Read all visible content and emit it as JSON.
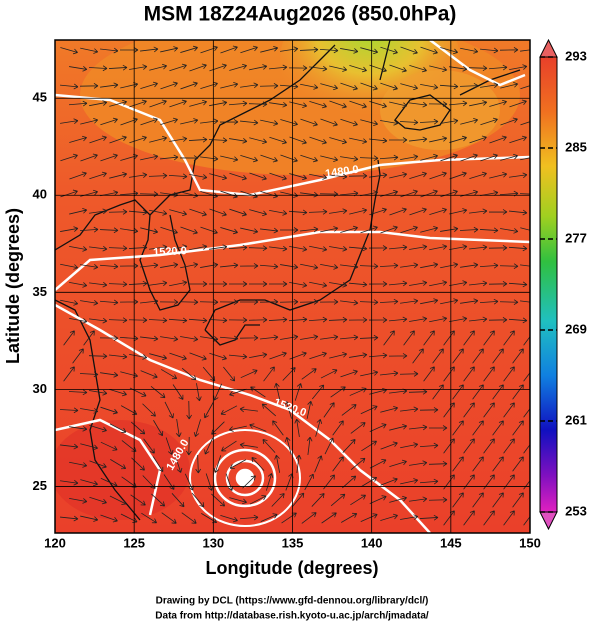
{
  "title": "MSM 18Z24Aug2026 (850.0hPa)",
  "x_axis": {
    "label": "Longitude (degrees)",
    "lim": [
      120,
      150
    ],
    "ticks": [
      120,
      125,
      130,
      135,
      140,
      145,
      150
    ]
  },
  "y_axis": {
    "label": "Latitude  (degrees)",
    "lim": [
      22.6,
      48
    ],
    "ticks": [
      25,
      30,
      35,
      40,
      45
    ]
  },
  "colorbar": {
    "lim": [
      253,
      293
    ],
    "ticks": [
      293,
      285,
      277,
      269,
      261,
      253
    ]
  },
  "contour_labels": [
    "1480.0",
    "1520.0",
    "1520.0",
    "1480.0"
  ],
  "footer": [
    "Drawing by DCL (https://www.gfd-dennou.org/library/dcl/)",
    "Data from http://database.rish.kyoto-u.ac.jp/arch/jmadata/"
  ]
}
